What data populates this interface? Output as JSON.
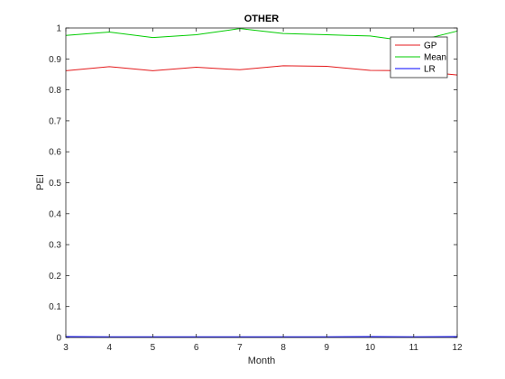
{
  "chart_data": {
    "type": "line",
    "title": "OTHER",
    "xlabel": "Month",
    "ylabel": "PEI",
    "xlim": [
      3,
      12
    ],
    "ylim": [
      0,
      1
    ],
    "xticks": [
      "3",
      "4",
      "5",
      "6",
      "7",
      "8",
      "9",
      "10",
      "11",
      "12"
    ],
    "yticks": [
      "0",
      "0.1",
      "0.2",
      "0.3",
      "0.4",
      "0.5",
      "0.6",
      "0.7",
      "0.8",
      "0.9",
      "1"
    ],
    "grid": false,
    "legend_position": "top-right",
    "x": [
      3,
      4,
      5,
      6,
      7,
      8,
      9,
      10,
      11,
      12
    ],
    "series": [
      {
        "name": "GP",
        "color": "#e41a1c",
        "values": [
          0.862,
          0.875,
          0.862,
          0.873,
          0.865,
          0.878,
          0.876,
          0.863,
          0.862,
          0.848
        ]
      },
      {
        "name": "Mean",
        "color": "#00cc00",
        "values": [
          0.976,
          0.987,
          0.969,
          0.978,
          0.998,
          0.982,
          0.978,
          0.974,
          0.955,
          0.99
        ]
      },
      {
        "name": "LR",
        "color": "#0000ff",
        "values": [
          0.003,
          0.002,
          0.002,
          0.002,
          0.002,
          0.002,
          0.002,
          0.003,
          0.002,
          0.003
        ]
      }
    ]
  }
}
